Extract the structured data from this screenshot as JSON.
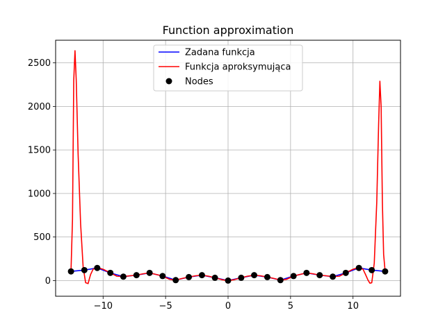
{
  "chart_data": {
    "type": "line",
    "title": "Function approximation",
    "xlabel": "",
    "ylabel": "",
    "xlim": [
      -13.8,
      13.8
    ],
    "ylim": [
      -180,
      2760
    ],
    "xticks": [
      -10,
      -5,
      0,
      5,
      10
    ],
    "xtick_labels": [
      "−10",
      "−5",
      "0",
      "5",
      "10"
    ],
    "yticks": [
      0,
      500,
      1000,
      1500,
      2000,
      2500
    ],
    "ytick_labels": [
      "0",
      "500",
      "1000",
      "1500",
      "2000",
      "2500"
    ],
    "grid": true,
    "legend_position": "top-center",
    "colors": {
      "given": "#0000ff",
      "approx": "#ff0000",
      "nodes": "#000000"
    },
    "series": [
      {
        "name": "Zadana funkcja",
        "kind": "line",
        "color": "#0000ff",
        "x": [
          -12.57,
          -11.5,
          -10.47,
          -9.42,
          -8.38,
          -7.33,
          -6.28,
          -5.24,
          -4.19,
          -3.14,
          -2.09,
          -1.05,
          0,
          1.05,
          2.09,
          3.14,
          4.19,
          5.24,
          6.28,
          7.33,
          8.38,
          9.42,
          10.47,
          11.5,
          12.57
        ],
        "y": [
          105,
          120,
          145,
          88,
          45,
          62,
          88,
          52,
          5,
          40,
          62,
          32,
          0,
          32,
          62,
          40,
          5,
          52,
          88,
          62,
          45,
          88,
          145,
          120,
          105
        ]
      },
      {
        "name": "Funkcja aproksymująca",
        "kind": "line",
        "color": "#ff0000",
        "x": [
          -12.57,
          -12.45,
          -12.35,
          -12.25,
          -12.15,
          -12.0,
          -11.8,
          -11.6,
          -11.4,
          -11.2,
          -11.1,
          -11.0,
          -10.8,
          -10.47,
          -10.0,
          -9.42,
          -8.9,
          -8.38,
          -7.85,
          -7.33,
          -6.8,
          -6.28,
          -5.75,
          -5.24,
          -4.7,
          -4.19,
          -3.65,
          -3.14,
          -2.6,
          -2.09,
          -1.55,
          -1.05,
          -0.5,
          0,
          0.5,
          1.05,
          1.55,
          2.09,
          2.6,
          3.14,
          3.65,
          4.19,
          4.7,
          5.24,
          5.75,
          6.28,
          6.8,
          7.33,
          7.85,
          8.38,
          8.9,
          9.42,
          10.0,
          10.47,
          10.8,
          11.0,
          11.2,
          11.35,
          11.5,
          11.7,
          11.9,
          12.05,
          12.15,
          12.25,
          12.35,
          12.45,
          12.57
        ],
        "y": [
          105,
          700,
          2300,
          2640,
          2300,
          1450,
          650,
          160,
          -25,
          -35,
          20,
          70,
          130,
          150,
          130,
          88,
          50,
          45,
          55,
          62,
          78,
          88,
          70,
          52,
          15,
          5,
          25,
          40,
          55,
          62,
          50,
          32,
          10,
          0,
          10,
          32,
          50,
          62,
          55,
          40,
          25,
          5,
          15,
          52,
          70,
          88,
          78,
          62,
          55,
          45,
          50,
          88,
          130,
          150,
          130,
          70,
          5,
          -30,
          -25,
          200,
          900,
          1800,
          2290,
          2000,
          900,
          300,
          105
        ]
      },
      {
        "name": "Nodes",
        "kind": "scatter",
        "color": "#000000",
        "x": [
          -12.57,
          -11.5,
          -10.47,
          -9.42,
          -8.38,
          -7.33,
          -6.28,
          -5.24,
          -4.19,
          -3.14,
          -2.09,
          -1.05,
          0,
          1.05,
          2.09,
          3.14,
          4.19,
          5.24,
          6.28,
          7.33,
          8.38,
          9.42,
          10.47,
          11.5,
          12.57
        ],
        "y": [
          105,
          120,
          145,
          88,
          45,
          62,
          88,
          52,
          5,
          40,
          62,
          32,
          0,
          32,
          62,
          40,
          5,
          52,
          88,
          62,
          45,
          88,
          145,
          120,
          105
        ]
      }
    ]
  }
}
